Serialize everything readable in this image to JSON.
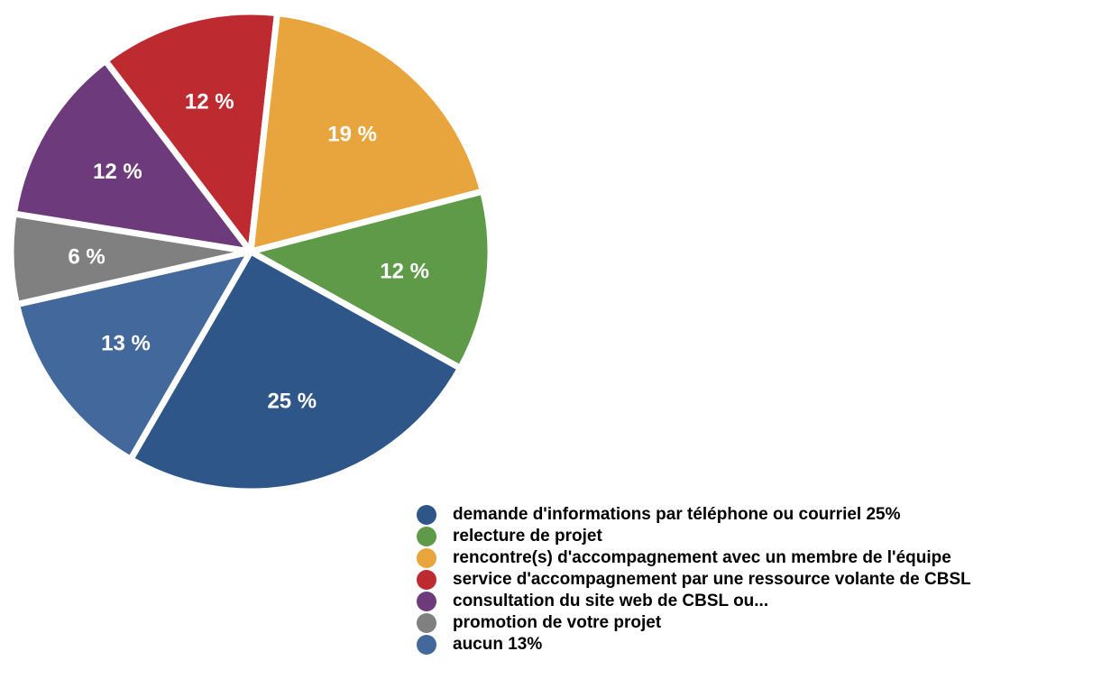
{
  "chart_data": {
    "type": "pie",
    "slices": [
      {
        "label": "aucun 13%",
        "value": 13,
        "display": "13 %",
        "color": "#43699c"
      },
      {
        "label": "promotion de votre projet",
        "value": 6,
        "display": "6 %",
        "color": "#7f807f"
      },
      {
        "label": "consultation du site web de CBSL ou...",
        "value": 12,
        "display": "12 %",
        "color": "#6d3a7c"
      },
      {
        "label": "service d'accompagnement par une ressource volante de CBSL",
        "value": 12,
        "display": "12 %",
        "color": "#bd2b31"
      },
      {
        "label": "rencontre(s) d'accompagnement avec un membre de l'équipe",
        "value": 19,
        "display": "19 %",
        "color": "#e8a43d"
      },
      {
        "label": "relecture de projet",
        "value": 12,
        "display": "12 %",
        "color": "#5e9a48"
      },
      {
        "label": "demande d'informations par téléphone ou courriel 25%",
        "value": 25,
        "display": "25 %",
        "color": "#2e5689"
      }
    ],
    "legend": {
      "placement": "bottom-right",
      "order": [
        6,
        5,
        4,
        3,
        2,
        1,
        0
      ]
    }
  }
}
